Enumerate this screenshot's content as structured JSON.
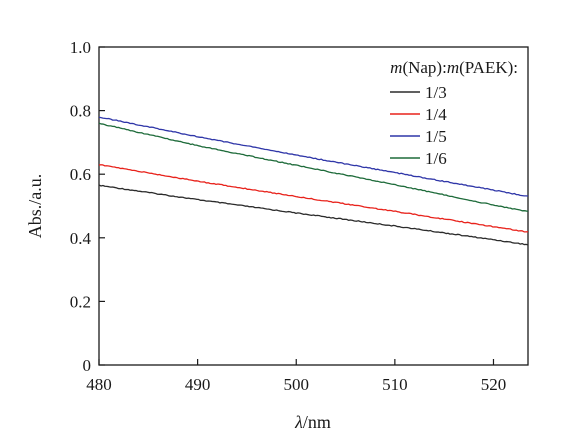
{
  "chart_data": {
    "type": "line",
    "xlabel_italic": "λ",
    "xlabel_rest": "/nm",
    "ylabel": "Abs./a.u.",
    "xlim": [
      480,
      523.5
    ],
    "ylim": [
      0,
      1.0
    ],
    "x_ticks": [
      480,
      490,
      500,
      510,
      520
    ],
    "x_tick_labels": [
      "480",
      "490",
      "500",
      "510",
      "520"
    ],
    "y_ticks": [
      0,
      0.2,
      0.4,
      0.6,
      0.8,
      1.0
    ],
    "y_tick_labels": [
      "0",
      "0.2",
      "0.4",
      "0.6",
      "0.8",
      "1.0"
    ],
    "grid": false,
    "legend": {
      "placement": "top-right",
      "title_parts": [
        {
          "text": "m",
          "italic": true
        },
        {
          "text": "(Nap):",
          "italic": false
        },
        {
          "text": "m",
          "italic": true
        },
        {
          "text": "(PAEK):",
          "italic": false
        }
      ]
    },
    "series": [
      {
        "name": "1/3",
        "color": "#2b2b2b",
        "x": [
          480,
          490,
          500,
          510,
          520,
          523.5
        ],
        "values": [
          0.565,
          0.52,
          0.478,
          0.437,
          0.394,
          0.378
        ]
      },
      {
        "name": "1/4",
        "color": "#e8221b",
        "x": [
          480,
          490,
          500,
          510,
          520,
          523.5
        ],
        "values": [
          0.63,
          0.578,
          0.53,
          0.483,
          0.435,
          0.418
        ]
      },
      {
        "name": "1/5",
        "color": "#2f36a8",
        "x": [
          480,
          490,
          500,
          510,
          520,
          523.5
        ],
        "values": [
          0.78,
          0.718,
          0.66,
          0.605,
          0.55,
          0.53
        ]
      },
      {
        "name": "1/6",
        "color": "#1e6b3a",
        "x": [
          480,
          490,
          500,
          510,
          520,
          523.5
        ],
        "values": [
          0.76,
          0.69,
          0.628,
          0.567,
          0.503,
          0.482
        ]
      }
    ]
  }
}
